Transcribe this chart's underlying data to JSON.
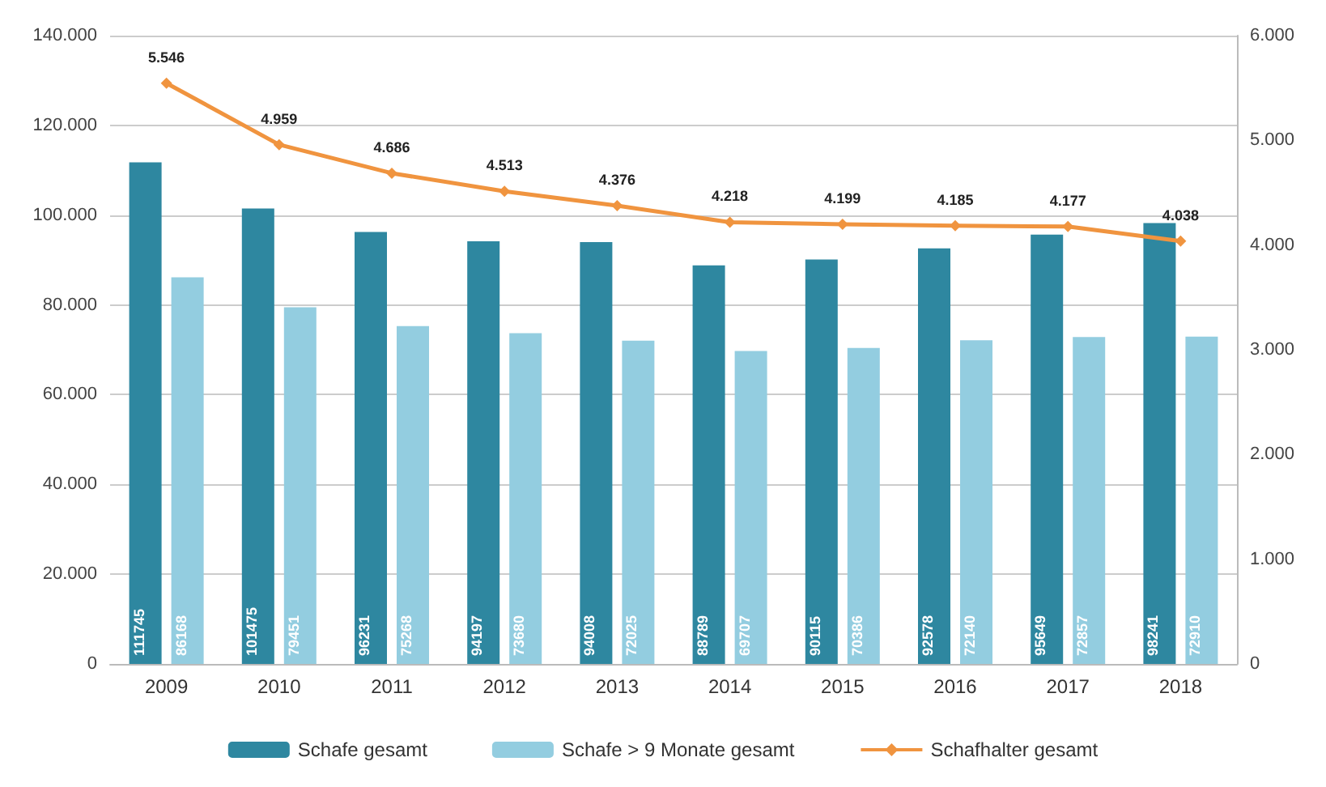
{
  "chart_data": {
    "type": "bar",
    "categories": [
      "2009",
      "2010",
      "2011",
      "2012",
      "2013",
      "2014",
      "2015",
      "2016",
      "2017",
      "2018"
    ],
    "series": [
      {
        "name": "Schafe gesamt",
        "color": "#2e87a0",
        "values": [
          111745,
          101475,
          96231,
          94197,
          94008,
          88789,
          90115,
          92578,
          95649,
          98241
        ]
      },
      {
        "name": "Schafe > 9 Monate gesamt",
        "color": "#93cde0",
        "values": [
          86168,
          79451,
          75268,
          73680,
          72025,
          69707,
          70386,
          72140,
          72857,
          72910
        ]
      },
      {
        "name": "Schafhalter gesamt",
        "type": "line",
        "axis": "y2",
        "color": "#f0943f",
        "marker": "diamond",
        "values": [
          5546,
          4959,
          4686,
          4513,
          4376,
          4218,
          4199,
          4185,
          4177,
          4038
        ],
        "value_labels": [
          "5.546",
          "4.959",
          "4.686",
          "4.513",
          "4.376",
          "4.218",
          "4.199",
          "4.185",
          "4.177",
          "4.038"
        ]
      }
    ],
    "ylim": [
      0,
      140000
    ],
    "yticks": [
      {
        "value": 0,
        "label": "0"
      },
      {
        "value": 20000,
        "label": "20.000"
      },
      {
        "value": 40000,
        "label": "40.000"
      },
      {
        "value": 60000,
        "label": "60.000"
      },
      {
        "value": 80000,
        "label": "80.000"
      },
      {
        "value": 100000,
        "label": "100.000"
      },
      {
        "value": 120000,
        "label": "120.000"
      },
      {
        "value": 140000,
        "label": "140.000"
      }
    ],
    "y2lim": [
      0,
      6000
    ],
    "y2ticks": [
      {
        "value": 0,
        "label": "0"
      },
      {
        "value": 1000,
        "label": "1.000"
      },
      {
        "value": 2000,
        "label": "2.000"
      },
      {
        "value": 3000,
        "label": "3.000"
      },
      {
        "value": 4000,
        "label": "4.000"
      },
      {
        "value": 5000,
        "label": "5.000"
      },
      {
        "value": 6000,
        "label": "6.000"
      }
    ],
    "data_labels": true,
    "grid": "y",
    "legend": "bottom"
  }
}
